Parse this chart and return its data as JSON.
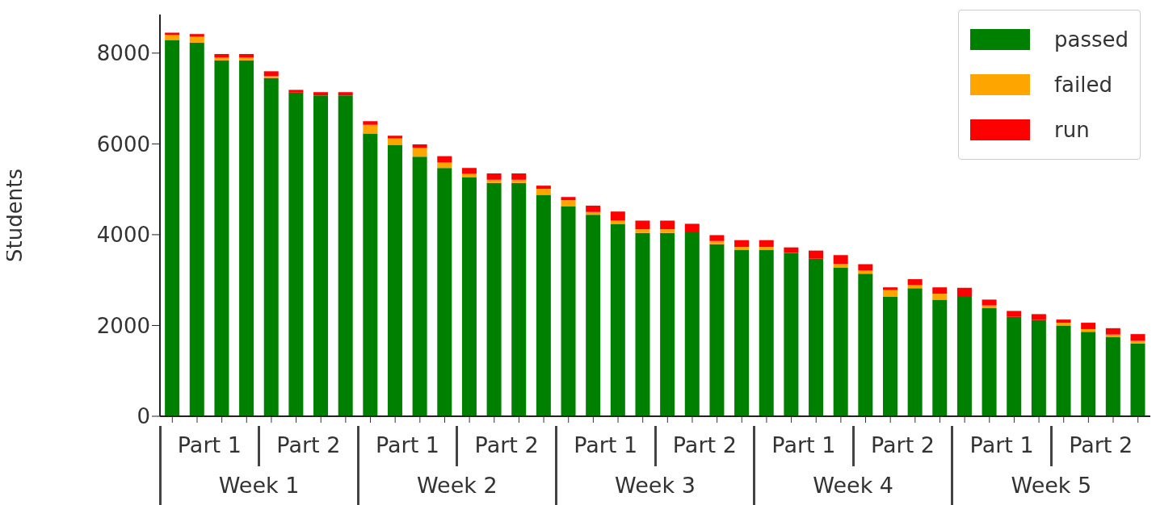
{
  "chart_data": {
    "type": "bar",
    "stacked": true,
    "ylabel": "Students",
    "categories": [
      null,
      null,
      null,
      null,
      null,
      null,
      null,
      null,
      null,
      null,
      null,
      null,
      null,
      null,
      null,
      null,
      null,
      null,
      null,
      null,
      null,
      null,
      null,
      null,
      null,
      null,
      null,
      null,
      null,
      null,
      null,
      null,
      null,
      null,
      null,
      null,
      null,
      null,
      null,
      null
    ],
    "series": [
      {
        "name": "passed",
        "color": "#008000",
        "values": [
          8290,
          8230,
          7840,
          7840,
          7450,
          7130,
          7070,
          7070,
          6230,
          5980,
          5720,
          5470,
          5270,
          5140,
          5140,
          4880,
          4630,
          4440,
          4240,
          4040,
          4040,
          4050,
          3790,
          3660,
          3660,
          3600,
          3470,
          3280,
          3140,
          2630,
          2820,
          2570,
          2630,
          2380,
          2190,
          2120,
          2000,
          1860,
          1740,
          1600
        ]
      },
      {
        "name": "failed",
        "color": "#ffa500",
        "values": [
          110,
          130,
          60,
          60,
          40,
          null,
          null,
          null,
          190,
          140,
          190,
          120,
          70,
          70,
          70,
          130,
          130,
          60,
          70,
          80,
          80,
          null,
          70,
          70,
          70,
          null,
          null,
          80,
          70,
          150,
          70,
          130,
          null,
          60,
          null,
          null,
          60,
          60,
          60,
          60
        ]
      },
      {
        "name": "run",
        "color": "#ff0000",
        "values": [
          50,
          60,
          80,
          80,
          110,
          60,
          70,
          70,
          80,
          60,
          80,
          140,
          130,
          140,
          140,
          70,
          70,
          140,
          200,
          190,
          190,
          190,
          130,
          150,
          150,
          120,
          180,
          190,
          140,
          60,
          130,
          140,
          200,
          130,
          130,
          130,
          70,
          140,
          140,
          150
        ]
      }
    ],
    "ylim": [
      0,
      8850
    ],
    "yticks": [
      0,
      2000,
      4000,
      6000,
      8000
    ],
    "grid": false,
    "legend": "top right",
    "annotations": [
      "Part 1",
      "Part 2",
      "Part 1",
      "Part 2",
      "Part 1",
      "Part 2",
      "Part 1",
      "Part 2",
      "Part 1",
      "Part 2",
      "Week 1",
      "Week 2",
      "Week 3",
      "Week 4",
      "Week 5"
    ]
  }
}
